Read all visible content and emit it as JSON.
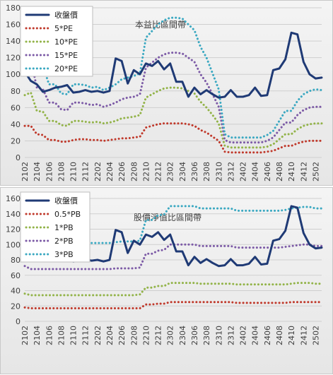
{
  "chart_data": [
    {
      "type": "line",
      "title": "本益比區間帶",
      "xlabel": "",
      "ylabel": "",
      "ylim": [
        0,
        180
      ],
      "yticks": [
        0,
        20,
        40,
        60,
        80,
        100,
        120,
        140,
        160,
        180
      ],
      "grid": true,
      "legend_position": "top-left",
      "categories": [
        "2102",
        "2103",
        "2104",
        "2105",
        "2106",
        "2107",
        "2108",
        "2109",
        "2110",
        "2111",
        "2112",
        "2201",
        "2202",
        "2203",
        "2204",
        "2205",
        "2206",
        "2207",
        "2208",
        "2209",
        "2210",
        "2211",
        "2212",
        "2301",
        "2302",
        "2303",
        "2304",
        "2305",
        "2306",
        "2307",
        "2308",
        "2309",
        "2310",
        "2311",
        "2312",
        "2401",
        "2402",
        "2403",
        "2404",
        "2405",
        "2406",
        "2407",
        "2408",
        "2409",
        "2410",
        "2411",
        "2412",
        "2501",
        "2502",
        "2503"
      ],
      "xtick_labels": [
        "2102",
        "2104",
        "2106",
        "2108",
        "2110",
        "2112",
        "2202",
        "2204",
        "2206",
        "2208",
        "2210",
        "2212",
        "2302",
        "2304",
        "2306",
        "2308",
        "2310",
        "2312",
        "2402",
        "2404",
        "2406",
        "2408",
        "2410",
        "2412",
        "2502"
      ],
      "series": [
        {
          "name": "收盤價",
          "color": "#1f3a75",
          "style": "solid",
          "values": [
            103,
            92,
            88,
            79,
            81,
            84,
            85,
            87,
            78,
            79,
            81,
            79,
            80,
            78,
            80,
            119,
            116,
            89,
            105,
            100,
            113,
            110,
            116,
            106,
            113,
            91,
            91,
            73,
            84,
            76,
            81,
            76,
            72,
            73,
            81,
            73,
            73,
            75,
            84,
            74,
            75,
            105,
            107,
            118,
            150,
            148,
            115,
            100,
            95,
            96
          ]
        },
        {
          "name": "5*PE",
          "color": "#c0392b",
          "style": "dotted",
          "values": [
            38,
            38,
            28,
            27,
            21,
            21,
            19,
            19,
            21,
            22,
            22,
            21,
            21,
            20,
            21,
            22,
            23,
            23,
            24,
            25,
            36,
            38,
            40,
            41,
            41,
            41,
            41,
            40,
            38,
            33,
            30,
            25,
            20,
            7,
            6,
            6,
            6,
            6,
            6,
            6,
            7,
            8,
            11,
            14,
            14,
            17,
            19,
            20,
            20,
            20
          ]
        },
        {
          "name": "10*PE",
          "color": "#92b348",
          "style": "dotted",
          "values": [
            75,
            78,
            56,
            55,
            44,
            44,
            39,
            38,
            44,
            44,
            43,
            42,
            43,
            41,
            42,
            44,
            47,
            48,
            49,
            51,
            72,
            76,
            80,
            83,
            84,
            84,
            83,
            80,
            77,
            67,
            60,
            51,
            41,
            14,
            12,
            12,
            12,
            12,
            12,
            12,
            13,
            16,
            22,
            28,
            28,
            34,
            38,
            40,
            41,
            41
          ]
        },
        {
          "name": "15*PE",
          "color": "#7c5aa6",
          "style": "dotted",
          "values": [
            113,
            118,
            84,
            82,
            66,
            66,
            58,
            57,
            66,
            66,
            65,
            63,
            64,
            61,
            63,
            66,
            70,
            72,
            73,
            76,
            108,
            114,
            120,
            124,
            126,
            126,
            125,
            120,
            115,
            100,
            90,
            76,
            61,
            21,
            18,
            18,
            18,
            18,
            18,
            18,
            20,
            24,
            33,
            42,
            42,
            51,
            57,
            60,
            61,
            61
          ]
        },
        {
          "name": "20*PE",
          "color": "#3aa8c1",
          "style": "dotted",
          "values": [
            151,
            157,
            112,
            110,
            88,
            88,
            77,
            76,
            88,
            88,
            87,
            84,
            85,
            81,
            84,
            88,
            94,
            96,
            98,
            101,
            144,
            152,
            160,
            165,
            168,
            168,
            167,
            160,
            153,
            133,
            120,
            101,
            82,
            28,
            24,
            24,
            24,
            24,
            24,
            24,
            27,
            32,
            44,
            56,
            56,
            68,
            76,
            80,
            82,
            81
          ]
        }
      ]
    },
    {
      "type": "line",
      "title": "股價淨值比區間帶",
      "xlabel": "",
      "ylabel": "",
      "ylim": [
        0,
        160
      ],
      "yticks": [
        0,
        20,
        40,
        60,
        80,
        100,
        120,
        140,
        160
      ],
      "grid": true,
      "legend_position": "top-left",
      "categories": [
        "2102",
        "2103",
        "2104",
        "2105",
        "2106",
        "2107",
        "2108",
        "2109",
        "2110",
        "2111",
        "2112",
        "2201",
        "2202",
        "2203",
        "2204",
        "2205",
        "2206",
        "2207",
        "2208",
        "2209",
        "2210",
        "2211",
        "2212",
        "2301",
        "2302",
        "2303",
        "2304",
        "2305",
        "2306",
        "2307",
        "2308",
        "2309",
        "2310",
        "2311",
        "2312",
        "2401",
        "2402",
        "2403",
        "2404",
        "2405",
        "2406",
        "2407",
        "2408",
        "2409",
        "2410",
        "2411",
        "2412",
        "2501",
        "2502",
        "2503"
      ],
      "xtick_labels": [
        "2102",
        "2104",
        "2106",
        "2108",
        "2110",
        "2112",
        "2202",
        "2204",
        "2206",
        "2208",
        "2210",
        "2212",
        "2302",
        "2304",
        "2306",
        "2308",
        "2310",
        "2312",
        "2402",
        "2404",
        "2406",
        "2408",
        "2410",
        "2412",
        "2502"
      ],
      "series": [
        {
          "name": "收盤價",
          "color": "#1f3a75",
          "style": "solid",
          "values": [
            103,
            92,
            88,
            79,
            81,
            84,
            85,
            87,
            78,
            79,
            81,
            79,
            80,
            78,
            80,
            119,
            116,
            89,
            105,
            100,
            113,
            110,
            116,
            106,
            113,
            91,
            91,
            73,
            84,
            76,
            81,
            76,
            72,
            73,
            81,
            73,
            73,
            75,
            84,
            74,
            75,
            105,
            107,
            118,
            150,
            148,
            115,
            100,
            95,
            96
          ]
        },
        {
          "name": "0.5*PB",
          "color": "#c0392b",
          "style": "dotted",
          "values": [
            18,
            17,
            17,
            17,
            17,
            17,
            17,
            17,
            17,
            17,
            17,
            17,
            17,
            17,
            17,
            17,
            17,
            17,
            17,
            17,
            22,
            22,
            23,
            23,
            25,
            25,
            25,
            25,
            25,
            25,
            25,
            25,
            25,
            25,
            25,
            24,
            24,
            24,
            24,
            24,
            24,
            24,
            24,
            24,
            25,
            25,
            25,
            25,
            25,
            25
          ]
        },
        {
          "name": "1*PB",
          "color": "#92b348",
          "style": "dotted",
          "values": [
            36,
            34,
            34,
            34,
            34,
            34,
            34,
            34,
            34,
            34,
            34,
            34,
            34,
            34,
            34,
            34,
            34,
            34,
            34,
            35,
            44,
            44,
            46,
            46,
            50,
            50,
            50,
            50,
            50,
            49,
            49,
            49,
            49,
            49,
            49,
            48,
            48,
            48,
            48,
            48,
            48,
            48,
            48,
            48,
            49,
            50,
            50,
            50,
            49,
            49
          ]
        },
        {
          "name": "2*PB",
          "color": "#7c5aa6",
          "style": "dotted",
          "values": [
            72,
            68,
            68,
            68,
            68,
            68,
            68,
            68,
            68,
            68,
            68,
            68,
            68,
            68,
            68,
            69,
            69,
            69,
            69,
            70,
            88,
            88,
            92,
            93,
            100,
            100,
            100,
            100,
            100,
            98,
            98,
            98,
            98,
            98,
            98,
            96,
            96,
            96,
            96,
            96,
            96,
            96,
            96,
            97,
            98,
            99,
            100,
            100,
            98,
            98
          ]
        },
        {
          "name": "3*PB",
          "color": "#3aa8c1",
          "style": "dotted",
          "values": [
            108,
            102,
            102,
            102,
            102,
            102,
            102,
            102,
            102,
            102,
            102,
            102,
            102,
            102,
            102,
            103,
            104,
            104,
            104,
            105,
            132,
            132,
            138,
            139,
            150,
            150,
            150,
            150,
            150,
            147,
            147,
            147,
            147,
            147,
            147,
            144,
            144,
            144,
            144,
            144,
            144,
            144,
            144,
            145,
            147,
            148,
            149,
            149,
            147,
            147
          ]
        }
      ]
    }
  ]
}
